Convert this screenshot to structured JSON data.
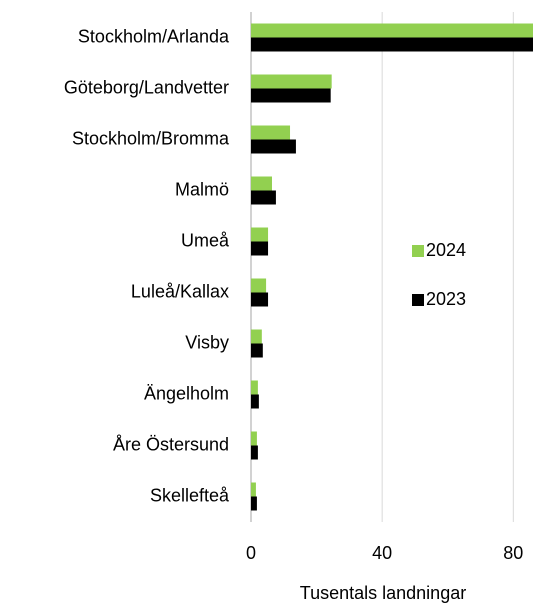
{
  "chart_data": {
    "type": "bar",
    "orientation": "horizontal",
    "categories": [
      "Stockholm/Arlanda",
      "Göteborg/Landvetter",
      "Stockholm/Bromma",
      "Malmö",
      "Umeå",
      "Luleå/Kallax",
      "Visby",
      "Ängelholm",
      "Åre Östersund",
      "Skellefteå"
    ],
    "series": [
      {
        "name": "2024",
        "color": "#92d050",
        "values": [
          86,
          24.6,
          11.9,
          6.4,
          5.2,
          4.6,
          3.3,
          2.1,
          1.8,
          1.5
        ]
      },
      {
        "name": "2023",
        "color": "#000000",
        "values": [
          86,
          24.3,
          13.7,
          7.6,
          5.2,
          5.2,
          3.6,
          2.4,
          2.1,
          1.8
        ]
      }
    ],
    "xlabel": "Tusentals landningar",
    "xlim": [
      0,
      86
    ],
    "xticks": [
      0,
      40,
      80
    ],
    "grid": true,
    "legend": "right"
  }
}
